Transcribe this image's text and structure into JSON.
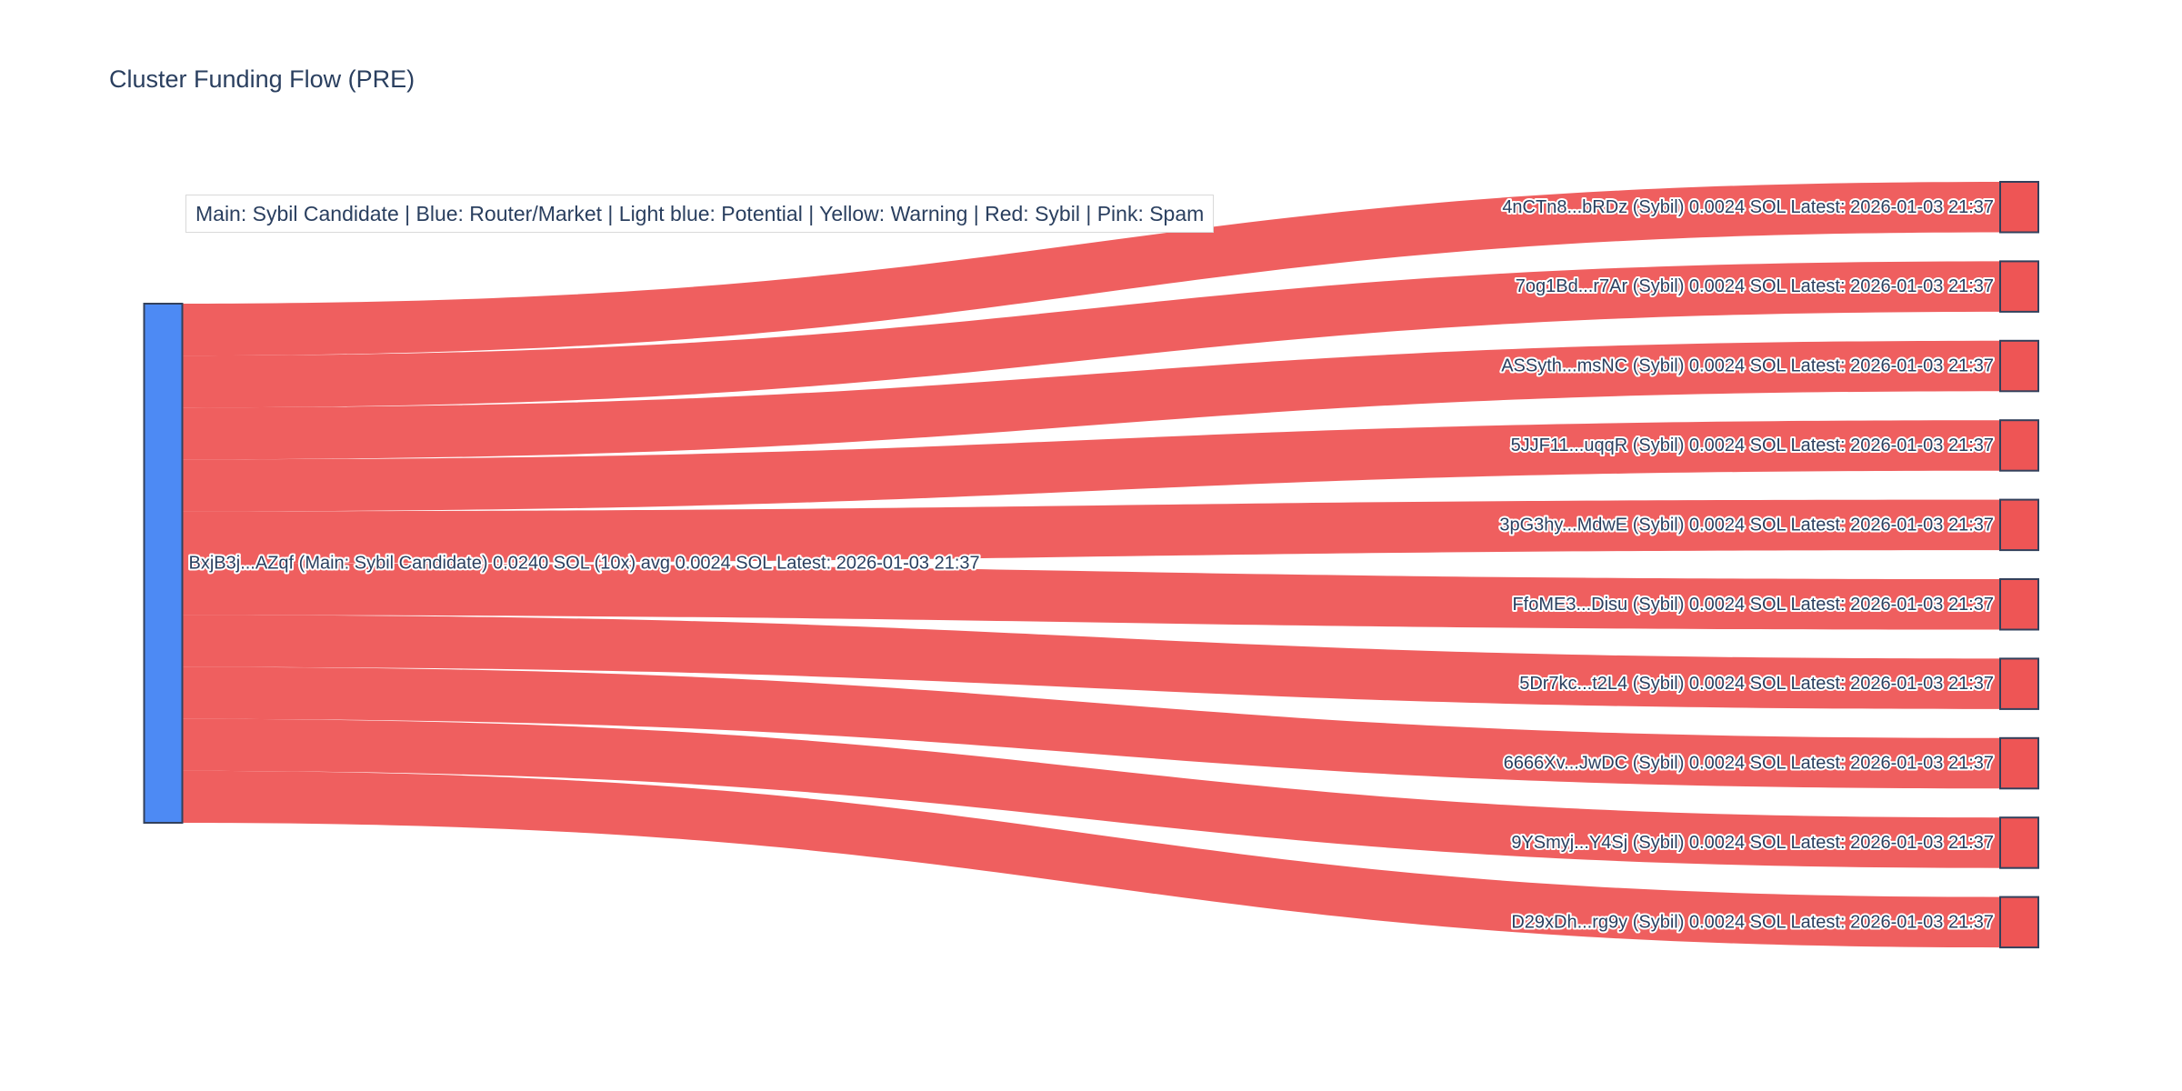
{
  "title": "Cluster Funding Flow (PRE)",
  "legend_note": "Main: Sybil Candidate  |  Blue: Router/Market | Light blue: Potential | Yellow: Warning | Red: Sybil | Pink: Spam",
  "chart_data": {
    "type": "sankey",
    "title": "Cluster Funding Flow (PRE)",
    "unit": "SOL",
    "source": {
      "label": "BxjB3j...AZqf (Main: Sybil Candidate) 0.0240 SOL (10x) avg 0.0024 SOL Latest: 2026-01-03 21:37",
      "short_address": "BxjB3j...AZqf",
      "role": "Main: Sybil Candidate",
      "total_sol": 0.024,
      "tx_count_note": "10x",
      "avg_sol": 0.0024,
      "latest": "2026-01-03 21:37"
    },
    "targets": [
      {
        "label": "4nCTn8...bRDz (Sybil) 0.0024 SOL Latest: 2026-01-03 21:37",
        "short_address": "4nCTn8...bRDz",
        "role": "Sybil",
        "value_sol": 0.0024,
        "latest": "2026-01-03 21:37"
      },
      {
        "label": "7og1Bd...r7Ar (Sybil) 0.0024 SOL Latest: 2026-01-03 21:37",
        "short_address": "7og1Bd...r7Ar",
        "role": "Sybil",
        "value_sol": 0.0024,
        "latest": "2026-01-03 21:37"
      },
      {
        "label": "ASSyth...msNC (Sybil) 0.0024 SOL Latest: 2026-01-03 21:37",
        "short_address": "ASSyth...msNC",
        "role": "Sybil",
        "value_sol": 0.0024,
        "latest": "2026-01-03 21:37"
      },
      {
        "label": "5JJF11...uqqR (Sybil) 0.0024 SOL Latest: 2026-01-03 21:37",
        "short_address": "5JJF11...uqqR",
        "role": "Sybil",
        "value_sol": 0.0024,
        "latest": "2026-01-03 21:37"
      },
      {
        "label": "3pG3hy...MdwE (Sybil) 0.0024 SOL Latest: 2026-01-03 21:37",
        "short_address": "3pG3hy...MdwE",
        "role": "Sybil",
        "value_sol": 0.0024,
        "latest": "2026-01-03 21:37"
      },
      {
        "label": "FfoME3...Disu (Sybil) 0.0024 SOL Latest: 2026-01-03 21:37",
        "short_address": "FfoME3...Disu",
        "role": "Sybil",
        "value_sol": 0.0024,
        "latest": "2026-01-03 21:37"
      },
      {
        "label": "5Dr7kc...t2L4 (Sybil) 0.0024 SOL Latest: 2026-01-03 21:37",
        "short_address": "5Dr7kc...t2L4",
        "role": "Sybil",
        "value_sol": 0.0024,
        "latest": "2026-01-03 21:37"
      },
      {
        "label": "6666Xv...JwDC (Sybil) 0.0024 SOL Latest: 2026-01-03 21:37",
        "short_address": "6666Xv...JwDC",
        "role": "Sybil",
        "value_sol": 0.0024,
        "latest": "2026-01-03 21:37"
      },
      {
        "label": "9YSmyj...Y4Sj (Sybil) 0.0024 SOL Latest: 2026-01-03 21:37",
        "short_address": "9YSmyj...Y4Sj",
        "role": "Sybil",
        "value_sol": 0.0024,
        "latest": "2026-01-03 21:37"
      },
      {
        "label": "D29xDh...rg9y (Sybil) 0.0024 SOL Latest: 2026-01-03 21:37",
        "short_address": "D29xDh...rg9y",
        "role": "Sybil",
        "value_sol": 0.0024,
        "latest": "2026-01-03 21:37"
      }
    ],
    "colors": {
      "source_node": "#4d8af4",
      "target_node": "#ee5555",
      "link": "#ee5555",
      "node_border": "#33415c",
      "text": "#2a3f5f",
      "text_halo": "#ffffff",
      "legend_border": "#d9d9d9",
      "background": "#ffffff"
    },
    "legend_position": "top-left",
    "grid": false
  }
}
